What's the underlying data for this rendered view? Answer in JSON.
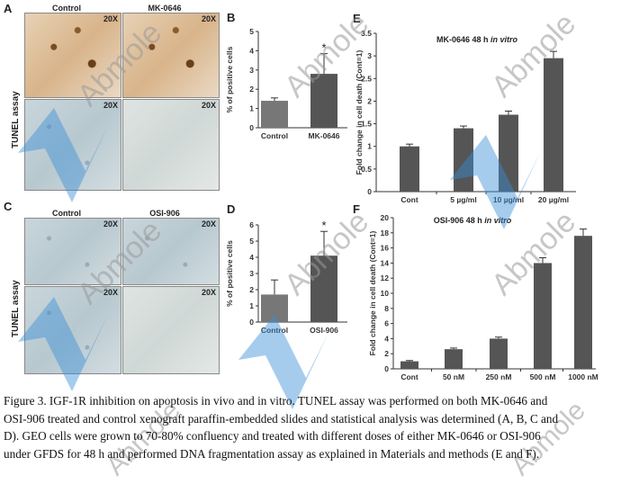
{
  "panels": {
    "A": {
      "label": "A",
      "col1": "Control",
      "col2": "MK-0646",
      "row_label": "TUNEL assay",
      "magnification": "20X"
    },
    "C": {
      "label": "C",
      "col1": "Control",
      "col2": "OSI-906",
      "row_label": "TUNEL assay",
      "magnification": "20X"
    },
    "B": {
      "label": "B"
    },
    "D": {
      "label": "D"
    },
    "E": {
      "label": "E"
    },
    "F": {
      "label": "F"
    }
  },
  "chart_data": [
    {
      "id": "B",
      "type": "bar",
      "title": "",
      "ylabel": "% of positive cells",
      "categories": [
        "Control",
        "MK-0646"
      ],
      "values": [
        1.4,
        2.8
      ],
      "errors": [
        0.15,
        1.05
      ],
      "ylim": [
        0,
        5
      ],
      "yticks": [
        0,
        1,
        2,
        3,
        4,
        5
      ],
      "significance": [
        "",
        "*"
      ],
      "colors": [
        "#777777",
        "#555555"
      ]
    },
    {
      "id": "D",
      "type": "bar",
      "title": "",
      "ylabel": "% of positive cells",
      "categories": [
        "Control",
        "OSI-906"
      ],
      "values": [
        1.7,
        4.1
      ],
      "errors": [
        0.9,
        1.5
      ],
      "ylim": [
        0,
        6
      ],
      "yticks": [
        0,
        1,
        2,
        3,
        4,
        5,
        6
      ],
      "significance": [
        "",
        "*"
      ],
      "colors": [
        "#777777",
        "#555555"
      ]
    },
    {
      "id": "E",
      "type": "bar",
      "title": "MK-0646 48 h",
      "title_italic": "in vitro",
      "ylabel": "Fold change in cell death (Cont=1)",
      "categories": [
        "Cont",
        "5 µg/ml",
        "10 µg/ml",
        "20 µg/ml"
      ],
      "values": [
        1.0,
        1.4,
        1.7,
        2.95
      ],
      "errors": [
        0.05,
        0.05,
        0.08,
        0.15
      ],
      "ylim": [
        0,
        3.5
      ],
      "yticks": [
        0,
        0.5,
        1,
        1.5,
        2,
        2.5,
        3,
        3.5
      ],
      "colors": [
        "#555555"
      ]
    },
    {
      "id": "F",
      "type": "bar",
      "title": "OSI-906 48 h",
      "title_italic": "in vitro",
      "ylabel": "Fold change in cell death (Cont=1)",
      "categories": [
        "Cont",
        "50 nM",
        "250 nM",
        "500 nM",
        "1000 nM"
      ],
      "values": [
        1.0,
        2.6,
        4.0,
        14.0,
        17.6
      ],
      "errors": [
        0.1,
        0.15,
        0.2,
        0.7,
        0.9
      ],
      "ylim": [
        0,
        20
      ],
      "yticks": [
        0,
        2,
        4,
        6,
        8,
        10,
        12,
        14,
        16,
        18,
        20
      ],
      "colors": [
        "#555555"
      ]
    }
  ],
  "watermark": {
    "brand": "Abmole",
    "tagline": "Inhibitor Leader"
  },
  "caption": [
    "Figure 3. IGF-1R inhibition on apoptosis in vivo and in vitro. TUNEL assay was performed on both MK-0646 and",
    "OSI-906 treated and control xenograft paraffin-embedded slides and statistical analysis was determined (A, B, C and",
    "D). GEO cells were grown to 70-80% confluency and treated with different doses of either MK-0646 or OSI-906",
    "under GFDS for 48 h and performed DNA fragmentation assay as explained in Materials and methods (E and F)."
  ]
}
